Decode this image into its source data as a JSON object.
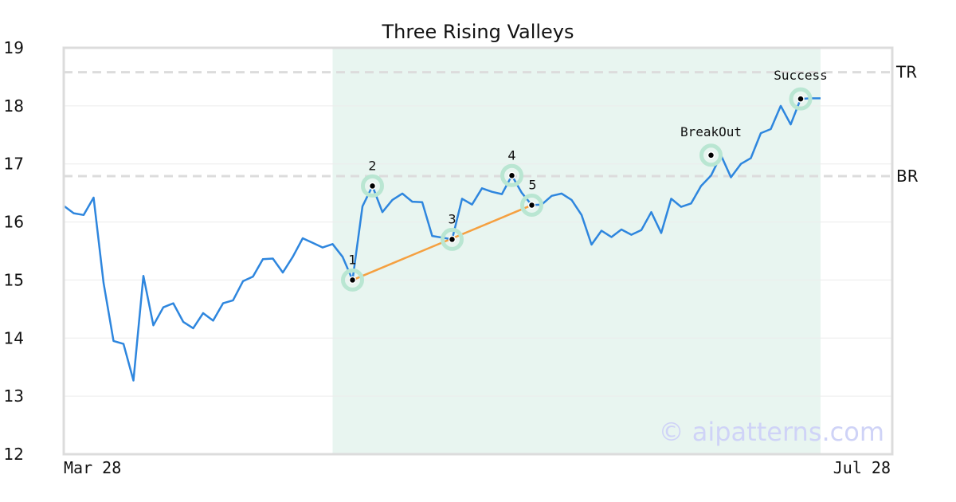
{
  "chart_data": {
    "type": "line",
    "title": "Three Rising Valleys",
    "ylim": [
      12,
      19
    ],
    "yticks": [
      "12",
      "13",
      "14",
      "15",
      "16",
      "17",
      "18",
      "19"
    ],
    "x_tick_labels": [
      "Mar 28",
      "Jul 28"
    ],
    "x_index_range": [
      0,
      83
    ],
    "grid": "horizontal",
    "series": [
      {
        "color": "#2e86de",
        "values": [
          16.28,
          16.15,
          16.12,
          16.42,
          14.95,
          13.95,
          13.9,
          13.27,
          15.07,
          14.22,
          14.53,
          14.6,
          14.28,
          14.17,
          14.43,
          14.3,
          14.6,
          14.65,
          14.98,
          15.06,
          15.36,
          15.37,
          15.13,
          15.4,
          15.72,
          15.64,
          15.56,
          15.62,
          15.4,
          15.0,
          16.27,
          16.62,
          16.17,
          16.38,
          16.49,
          16.35,
          16.34,
          15.76,
          15.73,
          15.7,
          16.4,
          16.3,
          16.58,
          16.52,
          16.48,
          16.8,
          16.5,
          16.29,
          16.3,
          16.45,
          16.49,
          16.38,
          16.12,
          15.61,
          15.85,
          15.74,
          15.87,
          15.78,
          15.86,
          16.17,
          15.81,
          16.4,
          16.26,
          16.32,
          16.62,
          16.8,
          17.15,
          16.77,
          17.0,
          17.1,
          17.53,
          17.6,
          18.0,
          17.68,
          18.12,
          18.13,
          18.13
        ]
      }
    ],
    "shaded_region": {
      "x_start": 27,
      "x_end": 76,
      "color": "#e8f5f0"
    },
    "horizontal_lines": [
      {
        "label": "TR",
        "y": 18.58
      },
      {
        "label": "BR",
        "y": 16.79
      }
    ],
    "points": [
      {
        "label": "1",
        "x": 29,
        "y": 15.0
      },
      {
        "label": "2",
        "x": 31,
        "y": 16.62
      },
      {
        "label": "3",
        "x": 39,
        "y": 15.7
      },
      {
        "label": "4",
        "x": 45,
        "y": 16.8
      },
      {
        "label": "5",
        "x": 47,
        "y": 16.29
      }
    ],
    "valley_trendline": {
      "from_x": 29,
      "from_y": 15.0,
      "to_x": 47,
      "to_y": 16.29,
      "color": "#f5a040"
    },
    "annotations": [
      {
        "label": "BreakOut",
        "x": 65,
        "y": 17.15
      },
      {
        "label": "Success",
        "x": 74,
        "y": 18.12
      }
    ],
    "watermark": "© aipatterns.com"
  }
}
